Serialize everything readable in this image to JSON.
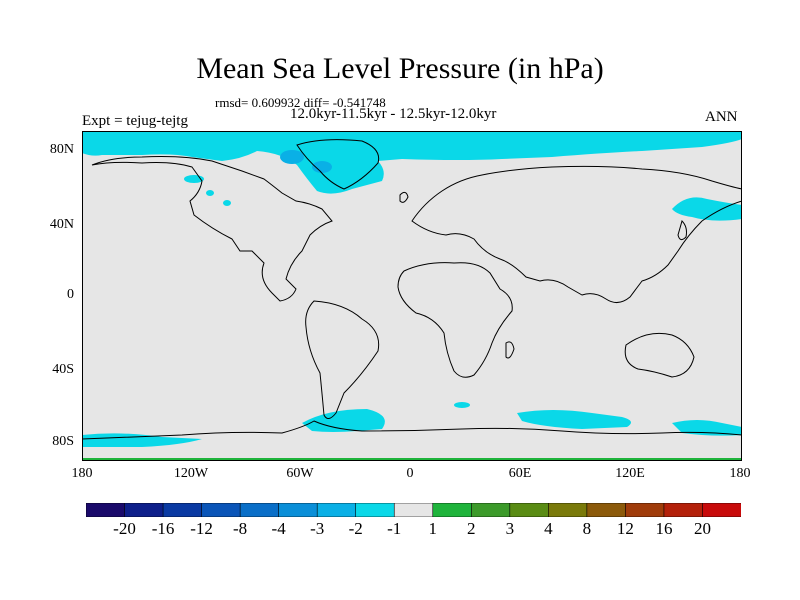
{
  "title": "Mean Sea Level Pressure (in hPa)",
  "stats_line": "rmsd= 0.609932 diff= -0.541748",
  "periods_line": "12.0kyr-11.5kyr - 12.5kyr-12.0kyr",
  "experiment_label": "Expt = tejug-tejtg",
  "season_label": "ANN",
  "lat_ticks": [
    "80N",
    "40N",
    "0",
    "40S",
    "80S"
  ],
  "lon_ticks": [
    "180",
    "120W",
    "60W",
    "0",
    "60E",
    "120E",
    "180"
  ],
  "colorbar": {
    "labels": [
      "-20",
      "-16",
      "-12",
      "-8",
      "-4",
      "-3",
      "-2",
      "-1",
      "1",
      "2",
      "3",
      "4",
      "8",
      "12",
      "16",
      "20"
    ],
    "colors": [
      "#1a0a6b",
      "#0e1f8a",
      "#0a3aa3",
      "#0a55b8",
      "#0a6fc8",
      "#0a8fd8",
      "#0ab0e6",
      "#0ad8e8",
      "#e6e6e6",
      "#1fb43c",
      "#3c9a2a",
      "#5a8c14",
      "#7a7a0a",
      "#8c5a0a",
      "#a03c0a",
      "#b4210a",
      "#c80a0a"
    ]
  },
  "map_colors": {
    "ocean": "#e6e6e6",
    "anomaly_minus2_minus1": "#0ad8e8",
    "anomaly_minus3_minus2": "#0ab0e6",
    "coast": "#000000",
    "positive_band": "#1fb43c"
  }
}
